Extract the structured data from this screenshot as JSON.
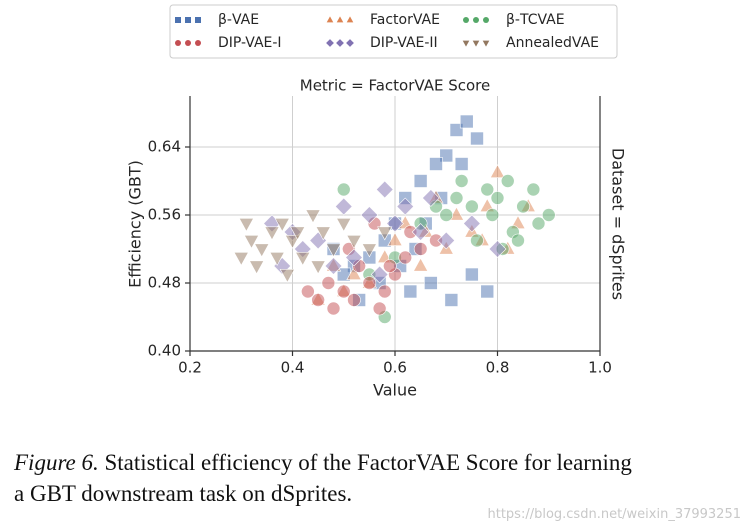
{
  "chart_data": {
    "type": "scatter",
    "title": "Metric = FactorVAE Score",
    "facet_label": "Dataset = dSprites",
    "xlabel": "Value",
    "ylabel": "Efficiency (GBT)",
    "xlim": [
      0.2,
      1.0
    ],
    "ylim": [
      0.4,
      0.7
    ],
    "xticks": [
      0.2,
      0.4,
      0.6,
      0.8,
      {
        "value": 1,
        "label": "1.0"
      }
    ],
    "yticks": [
      {
        "value": 0.4,
        "label": "0.40"
      },
      0.48,
      0.56,
      0.64
    ],
    "grid": true,
    "series": [
      {
        "name": "β-VAE",
        "color": "#4c72b0",
        "marker": "square",
        "x": [
          0.72,
          0.74,
          0.76,
          0.7,
          0.68,
          0.65,
          0.62,
          0.6,
          0.58,
          0.55,
          0.52,
          0.5,
          0.48,
          0.63,
          0.67,
          0.71,
          0.75,
          0.78,
          0.69,
          0.66,
          0.64,
          0.73,
          0.57,
          0.53,
          0.61
        ],
        "values": [
          0.66,
          0.67,
          0.65,
          0.63,
          0.62,
          0.6,
          0.58,
          0.55,
          0.53,
          0.51,
          0.5,
          0.49,
          0.52,
          0.47,
          0.48,
          0.46,
          0.49,
          0.47,
          0.58,
          0.55,
          0.52,
          0.62,
          0.48,
          0.46,
          0.5
        ]
      },
      {
        "name": "FactorVAE",
        "color": "#dd8452",
        "marker": "triangle",
        "x": [
          0.8,
          0.78,
          0.84,
          0.75,
          0.7,
          0.65,
          0.6,
          0.55,
          0.5,
          0.45,
          0.72,
          0.68,
          0.82,
          0.58,
          0.62,
          0.48,
          0.77,
          0.86,
          0.52,
          0.66
        ],
        "values": [
          0.61,
          0.57,
          0.55,
          0.54,
          0.52,
          0.5,
          0.53,
          0.48,
          0.47,
          0.46,
          0.56,
          0.58,
          0.52,
          0.51,
          0.55,
          0.5,
          0.53,
          0.57,
          0.49,
          0.54
        ]
      },
      {
        "name": "β-TCVAE",
        "color": "#55a868",
        "marker": "circle",
        "x": [
          0.8,
          0.82,
          0.85,
          0.88,
          0.9,
          0.78,
          0.75,
          0.72,
          0.7,
          0.83,
          0.87,
          0.65,
          0.68,
          0.76,
          0.81,
          0.73,
          0.6,
          0.55,
          0.5,
          0.58,
          0.84,
          0.79
        ],
        "values": [
          0.58,
          0.6,
          0.57,
          0.55,
          0.56,
          0.59,
          0.57,
          0.58,
          0.56,
          0.54,
          0.59,
          0.55,
          0.57,
          0.53,
          0.52,
          0.6,
          0.51,
          0.49,
          0.59,
          0.44,
          0.53,
          0.56
        ]
      },
      {
        "name": "DIP-VAE-I",
        "color": "#c44e52",
        "marker": "circle",
        "x": [
          0.45,
          0.48,
          0.5,
          0.52,
          0.55,
          0.58,
          0.6,
          0.62,
          0.65,
          0.47,
          0.53,
          0.57,
          0.43,
          0.63,
          0.68,
          0.51,
          0.56,
          0.59
        ],
        "values": [
          0.46,
          0.45,
          0.47,
          0.46,
          0.48,
          0.47,
          0.49,
          0.51,
          0.52,
          0.48,
          0.5,
          0.45,
          0.47,
          0.54,
          0.53,
          0.52,
          0.55,
          0.5
        ]
      },
      {
        "name": "DIP-VAE-II",
        "color": "#8172b2",
        "marker": "diamond",
        "x": [
          0.36,
          0.4,
          0.45,
          0.5,
          0.55,
          0.58,
          0.6,
          0.65,
          0.7,
          0.75,
          0.8,
          0.52,
          0.48,
          0.42,
          0.62,
          0.57,
          0.67,
          0.38
        ],
        "values": [
          0.55,
          0.54,
          0.53,
          0.57,
          0.56,
          0.59,
          0.55,
          0.54,
          0.53,
          0.55,
          0.52,
          0.51,
          0.5,
          0.52,
          0.57,
          0.49,
          0.58,
          0.5
        ]
      },
      {
        "name": "AnnealedVAE",
        "color": "#937860",
        "marker": "triangle-down",
        "x": [
          0.3,
          0.32,
          0.34,
          0.36,
          0.38,
          0.4,
          0.42,
          0.44,
          0.46,
          0.48,
          0.5,
          0.52,
          0.33,
          0.37,
          0.41,
          0.45,
          0.55,
          0.58,
          0.31,
          0.39
        ],
        "values": [
          0.51,
          0.53,
          0.52,
          0.54,
          0.55,
          0.53,
          0.51,
          0.56,
          0.54,
          0.52,
          0.55,
          0.53,
          0.5,
          0.51,
          0.54,
          0.5,
          0.52,
          0.54,
          0.55,
          0.49
        ]
      }
    ]
  },
  "caption": {
    "label": "Figure 6.",
    "lines": [
      "Statistical efficiency of the FactorVAE Score for learning",
      "a GBT downstream task on dSprites."
    ]
  },
  "watermark": "https://blog.csdn.net/weixin_37993251"
}
